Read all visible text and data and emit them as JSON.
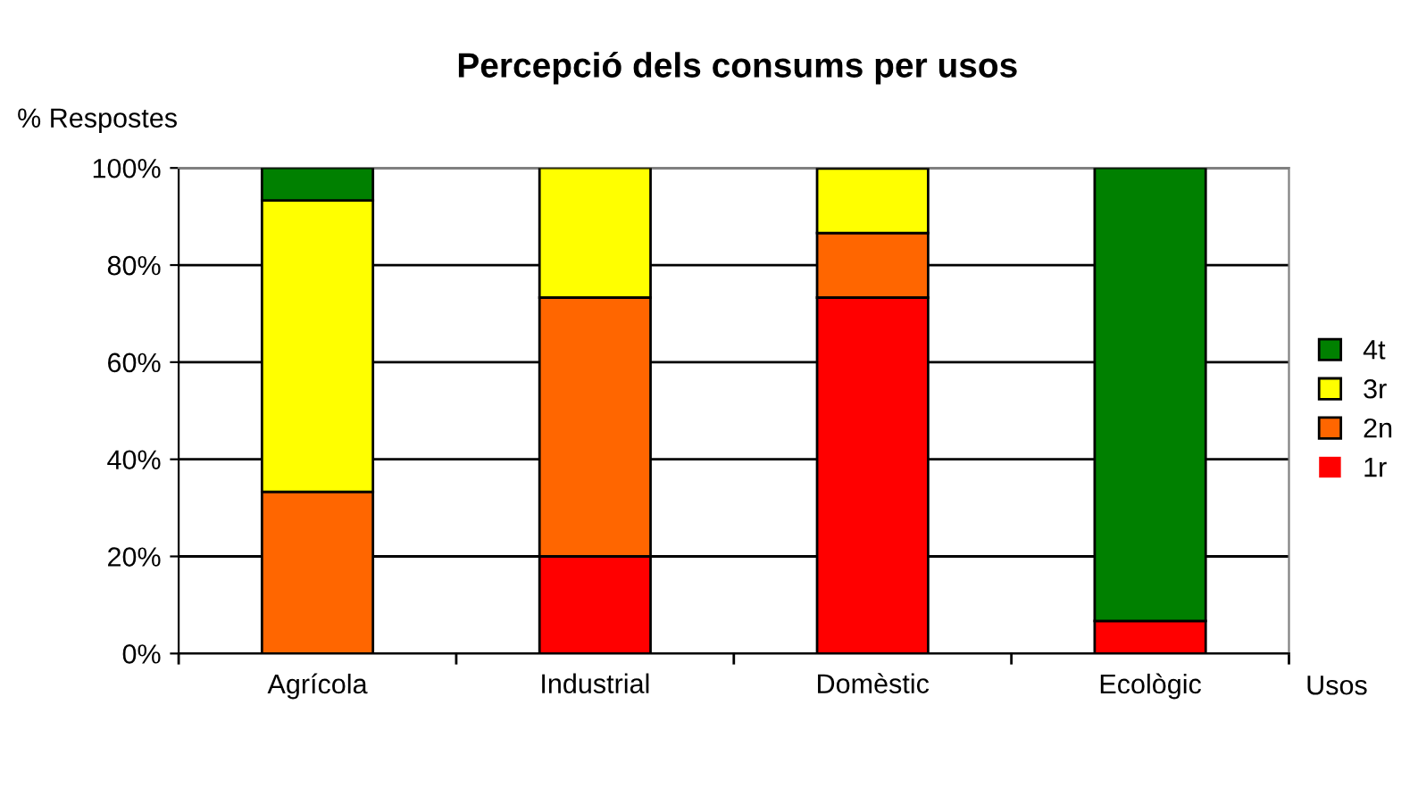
{
  "chart_data": {
    "type": "bar",
    "title": "Percepció dels consums per usos",
    "ylabel": "% Respostes",
    "xlabel": "Usos",
    "categories": [
      "Agrícola",
      "Industrial",
      "Domèstic",
      "Ecològic"
    ],
    "stacked": true,
    "series": [
      {
        "name": "1r",
        "color": "#ff0000",
        "values": [
          0,
          20,
          73.3,
          6.7
        ]
      },
      {
        "name": "2n",
        "color": "#ff6600",
        "values": [
          33.3,
          53.3,
          13.3,
          0
        ]
      },
      {
        "name": "3r",
        "color": "#ffff00",
        "values": [
          60,
          26.7,
          13.3,
          0
        ]
      },
      {
        "name": "4t",
        "color": "#008000",
        "values": [
          6.7,
          0,
          0,
          93.3
        ]
      }
    ],
    "ylim": [
      0,
      100
    ],
    "yticks": [
      {
        "value": 0,
        "label": "0%"
      },
      {
        "value": 20,
        "label": "20%"
      },
      {
        "value": 40,
        "label": "40%"
      },
      {
        "value": 60,
        "label": "60%"
      },
      {
        "value": 80,
        "label": "80%"
      },
      {
        "value": 100,
        "label": "100%"
      }
    ],
    "grid": "y",
    "legend": "right"
  }
}
